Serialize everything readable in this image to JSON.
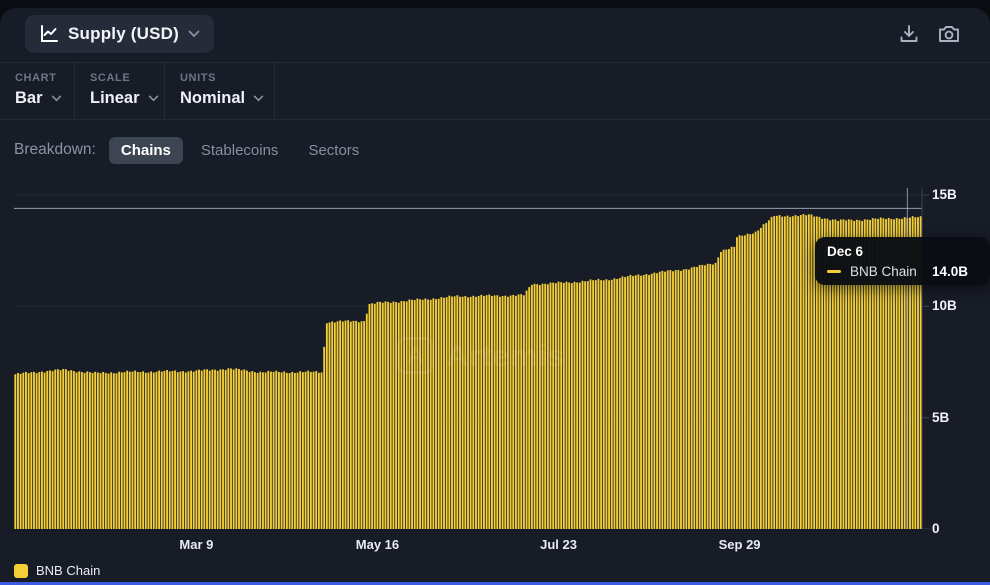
{
  "header": {
    "metric_button": {
      "label": "Supply (USD)"
    }
  },
  "toolbar": {
    "groups": [
      {
        "label": "CHART",
        "value": "Bar"
      },
      {
        "label": "SCALE",
        "value": "Linear"
      },
      {
        "label": "UNITS",
        "value": "Nominal"
      }
    ]
  },
  "breakdown": {
    "label": "Breakdown:",
    "options": [
      {
        "label": "Chains",
        "selected": true
      },
      {
        "label": "Stablecoins",
        "selected": false
      },
      {
        "label": "Sectors",
        "selected": false
      }
    ]
  },
  "tooltip": {
    "date": "Dec 6",
    "series": "BNB Chain",
    "value": "14.0B"
  },
  "legend": [
    {
      "label": "BNB Chain",
      "color": "#f5cf38"
    }
  ],
  "watermark": "Artemis",
  "colors": {
    "bar": "#f5cf38",
    "grid": "#242937",
    "axis": "#3a4150",
    "crosshair": "#a5acbd"
  },
  "chart_data": {
    "type": "bar",
    "title": "Supply (USD)",
    "series_name": "BNB Chain",
    "unit": "USD billions",
    "ylim": [
      0,
      15
    ],
    "grid": "horizontal",
    "legend_position": "bottom-left",
    "y_tick_defs": [
      {
        "label": "15B",
        "value": 15
      },
      {
        "label": "10B",
        "value": 10
      },
      {
        "label": "5B",
        "value": 5
      },
      {
        "label": "0",
        "value": 0
      }
    ],
    "x_ticks": [
      {
        "label": "Mar 9",
        "day": 68
      },
      {
        "label": "May 16",
        "day": 136
      },
      {
        "label": "Jul 23",
        "day": 204
      },
      {
        "label": "Sep 29",
        "day": 272
      }
    ],
    "total_days": 341,
    "key_points": [
      {
        "day": 0,
        "value": 6.95
      },
      {
        "day": 12,
        "value": 7.1
      },
      {
        "day": 19,
        "value": 7.15
      },
      {
        "day": 30,
        "value": 7.0
      },
      {
        "day": 40,
        "value": 7.05
      },
      {
        "day": 68,
        "value": 7.1
      },
      {
        "day": 80,
        "value": 7.2
      },
      {
        "day": 92,
        "value": 7.05
      },
      {
        "day": 115,
        "value": 7.05
      },
      {
        "day": 117,
        "value": 9.3
      },
      {
        "day": 131,
        "value": 9.35
      },
      {
        "day": 133,
        "value": 10.1
      },
      {
        "day": 136,
        "value": 10.15
      },
      {
        "day": 152,
        "value": 10.3
      },
      {
        "day": 166,
        "value": 10.45
      },
      {
        "day": 191,
        "value": 10.5
      },
      {
        "day": 194,
        "value": 11.0
      },
      {
        "day": 204,
        "value": 11.05
      },
      {
        "day": 222,
        "value": 11.2
      },
      {
        "day": 237,
        "value": 11.45
      },
      {
        "day": 253,
        "value": 11.7
      },
      {
        "day": 263,
        "value": 11.95
      },
      {
        "day": 265,
        "value": 12.5
      },
      {
        "day": 270,
        "value": 12.65
      },
      {
        "day": 271,
        "value": 13.1
      },
      {
        "day": 278,
        "value": 13.35
      },
      {
        "day": 281,
        "value": 13.65
      },
      {
        "day": 285,
        "value": 14.05
      },
      {
        "day": 298,
        "value": 14.1
      },
      {
        "day": 309,
        "value": 13.85
      },
      {
        "day": 319,
        "value": 13.9
      },
      {
        "day": 329,
        "value": 13.95
      },
      {
        "day": 340,
        "value": 14.0
      }
    ],
    "hovered_point": {
      "date": "Dec 6",
      "value": 14.0,
      "value_label": "14.0B"
    },
    "crosshair": {
      "day": 335,
      "y_value": 14.4
    }
  }
}
